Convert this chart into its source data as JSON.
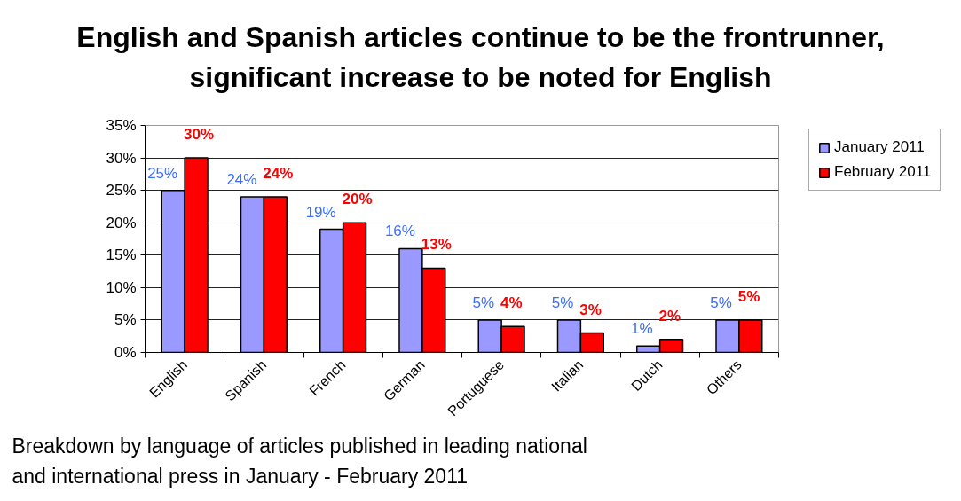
{
  "chart_data": {
    "type": "bar",
    "title": "English and Spanish articles continue to be the frontrunner, significant increase to be noted for English",
    "categories": [
      "English",
      "Spanish",
      "French",
      "German",
      "Portuguese",
      "Italian",
      "Dutch",
      "Others"
    ],
    "series": [
      {
        "name": "January 2011",
        "color": "#9999ff",
        "values": [
          25,
          24,
          19,
          16,
          5,
          5,
          1,
          5
        ],
        "value_labels": [
          "25%",
          "24%",
          "19%",
          "16%",
          "5%",
          "5%",
          "1%",
          "5%"
        ]
      },
      {
        "name": "February 2011",
        "color": "#ff0000",
        "values": [
          30,
          24,
          20,
          13,
          4,
          3,
          2,
          5
        ],
        "value_labels": [
          "30%",
          "24%",
          "20%",
          "13%",
          "4%",
          "3%",
          "2%",
          "5%"
        ]
      }
    ],
    "ylim": [
      0,
      35
    ],
    "yticks": [
      {
        "value": 0,
        "label": "0%"
      },
      {
        "value": 5,
        "label": "5%"
      },
      {
        "value": 10,
        "label": "10%"
      },
      {
        "value": 15,
        "label": "15%"
      },
      {
        "value": 20,
        "label": "20%"
      },
      {
        "value": 25,
        "label": "25%"
      },
      {
        "value": 30,
        "label": "30%"
      },
      {
        "value": 35,
        "label": "35%"
      }
    ],
    "grid": "y",
    "legend": "top right",
    "annotations": [
      "Breakdown by language of articles published in leading national and international press in January - February 2011"
    ]
  }
}
